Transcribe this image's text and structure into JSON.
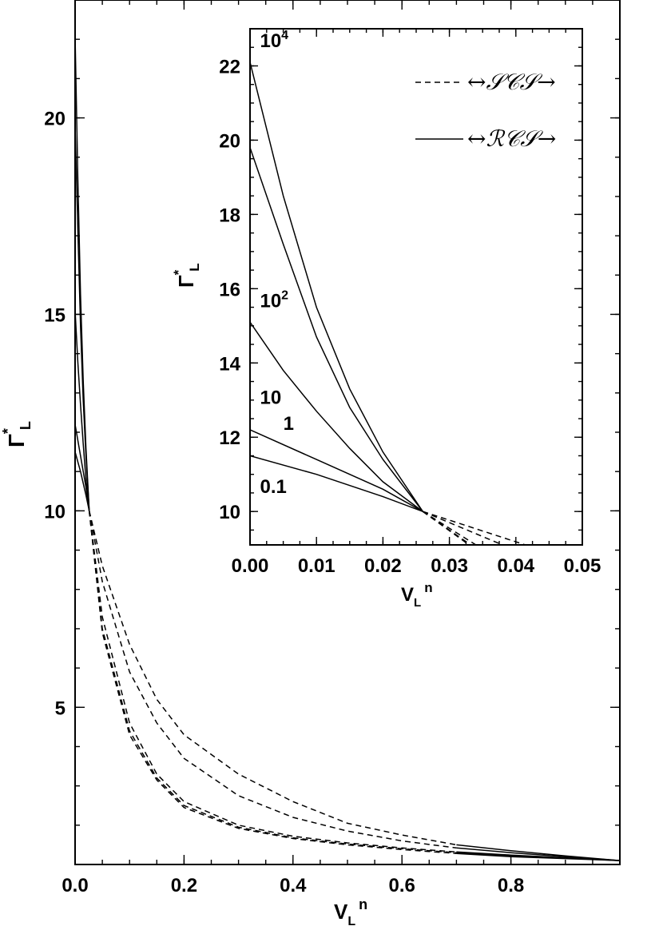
{
  "chart_data": [
    {
      "type": "line",
      "role": "main",
      "xlabel": "V",
      "xlabel_sub": "L",
      "xlabel_sup": "n",
      "ylabel": "Γ",
      "ylabel_sub": "L",
      "ylabel_sup": "*",
      "xlim": [
        0.0,
        1.0
      ],
      "ylim": [
        1.0,
        23.0
      ],
      "xticks": [
        0.0,
        0.2,
        0.4,
        0.6,
        0.8
      ],
      "xtick_labels": [
        "0.0",
        "0.2",
        "0.4",
        "0.6",
        "0.8"
      ],
      "yticks": [
        5,
        10,
        15,
        20
      ],
      "ytick_labels": [
        "5",
        "10",
        "15",
        "20"
      ],
      "series": [
        {
          "style": "solid",
          "x": [
            0.0,
            0.005,
            0.01,
            0.015,
            0.02,
            0.026
          ],
          "y": [
            22.1,
            18.5,
            15.5,
            13.3,
            11.6,
            10.0
          ]
        },
        {
          "style": "solid",
          "x": [
            0.0,
            0.005,
            0.01,
            0.015,
            0.02,
            0.026
          ],
          "y": [
            19.8,
            17.2,
            14.7,
            12.8,
            11.4,
            10.0
          ]
        },
        {
          "style": "solid",
          "x": [
            0.0,
            0.005,
            0.01,
            0.015,
            0.02,
            0.026
          ],
          "y": [
            15.1,
            13.8,
            12.7,
            11.7,
            10.8,
            10.0
          ]
        },
        {
          "style": "solid",
          "x": [
            0.0,
            0.01,
            0.02,
            0.026
          ],
          "y": [
            12.2,
            11.4,
            10.6,
            10.0
          ]
        },
        {
          "style": "solid",
          "x": [
            0.0,
            0.01,
            0.02,
            0.026
          ],
          "y": [
            11.5,
            11.0,
            10.4,
            10.0
          ]
        },
        {
          "style": "dashed",
          "x": [
            0.026,
            0.05,
            0.1,
            0.15,
            0.2,
            0.3,
            0.4,
            0.5,
            0.6,
            0.7
          ],
          "y": [
            10.0,
            8.6,
            6.6,
            5.2,
            4.3,
            3.3,
            2.6,
            2.05,
            1.75,
            1.5
          ]
        },
        {
          "style": "dashed",
          "x": [
            0.026,
            0.05,
            0.1,
            0.15,
            0.2,
            0.3,
            0.4,
            0.5,
            0.6,
            0.7
          ],
          "y": [
            10.0,
            8.2,
            5.9,
            4.6,
            3.7,
            2.75,
            2.2,
            1.85,
            1.6,
            1.42
          ]
        },
        {
          "style": "dashed",
          "x": [
            0.026,
            0.05,
            0.1,
            0.15,
            0.2,
            0.3,
            0.4,
            0.5,
            0.6,
            0.7
          ],
          "y": [
            10.0,
            7.3,
            4.6,
            3.3,
            2.6,
            2.0,
            1.72,
            1.55,
            1.42,
            1.32
          ]
        },
        {
          "style": "dashed",
          "x": [
            0.026,
            0.05,
            0.1,
            0.15,
            0.2,
            0.3,
            0.4,
            0.5,
            0.6,
            0.7
          ],
          "y": [
            10.0,
            7.0,
            4.4,
            3.2,
            2.5,
            1.95,
            1.68,
            1.52,
            1.4,
            1.3
          ]
        },
        {
          "style": "dashed",
          "x": [
            0.026,
            0.05,
            0.1,
            0.15,
            0.2,
            0.3,
            0.4,
            0.5,
            0.6,
            0.7
          ],
          "y": [
            10.0,
            6.9,
            4.3,
            3.15,
            2.45,
            1.92,
            1.66,
            1.5,
            1.38,
            1.28
          ]
        },
        {
          "style": "solid",
          "x": [
            0.7,
            0.8,
            0.9,
            1.0
          ],
          "y": [
            1.5,
            1.35,
            1.22,
            1.1
          ]
        },
        {
          "style": "solid",
          "x": [
            0.7,
            0.8,
            0.9,
            1.0
          ],
          "y": [
            1.42,
            1.3,
            1.2,
            1.1
          ]
        },
        {
          "style": "solid",
          "x": [
            0.7,
            0.8,
            0.9,
            1.0
          ],
          "y": [
            1.32,
            1.24,
            1.17,
            1.1
          ]
        },
        {
          "style": "solid",
          "x": [
            0.7,
            0.8,
            0.9,
            1.0
          ],
          "y": [
            1.3,
            1.22,
            1.16,
            1.1
          ]
        },
        {
          "style": "solid",
          "x": [
            0.7,
            0.8,
            0.9,
            1.0
          ],
          "y": [
            1.28,
            1.2,
            1.15,
            1.1
          ]
        }
      ]
    },
    {
      "type": "line",
      "role": "inset",
      "xlabel": "V",
      "xlabel_sub": "L",
      "xlabel_sup": "n",
      "ylabel": "Γ",
      "ylabel_sub": "L",
      "ylabel_sup": "*",
      "xlim": [
        0.0,
        0.05
      ],
      "ylim": [
        9.1,
        23.0
      ],
      "xticks": [
        0.0,
        0.01,
        0.02,
        0.03,
        0.04,
        0.05
      ],
      "xtick_labels": [
        "0.00",
        "0.01",
        "0.02",
        "0.03",
        "0.04",
        "0.05"
      ],
      "yticks": [
        10,
        12,
        14,
        16,
        18,
        20,
        22
      ],
      "ytick_labels": [
        "10",
        "12",
        "14",
        "16",
        "18",
        "20",
        "22"
      ],
      "legend": {
        "position": "top-right",
        "entries": [
          {
            "style": "dashed",
            "label": "↔𝒮𝒞𝒮→"
          },
          {
            "style": "solid",
            "label": "↔ℛ𝒞𝒮→"
          }
        ]
      },
      "annotations": [
        {
          "text": "10",
          "sup": "4",
          "x": 0.0015,
          "y": 22.5
        },
        {
          "text": "10",
          "sup": "2",
          "x": 0.0015,
          "y": 15.5
        },
        {
          "text": "10",
          "sup": "",
          "x": 0.0015,
          "y": 12.9
        },
        {
          "text": "1",
          "sup": "",
          "x": 0.005,
          "y": 12.2
        },
        {
          "text": "0.1",
          "sup": "",
          "x": 0.0015,
          "y": 10.5
        }
      ],
      "series": [
        {
          "style": "solid",
          "x": [
            0.0,
            0.005,
            0.01,
            0.015,
            0.02,
            0.026
          ],
          "y": [
            22.1,
            18.5,
            15.5,
            13.3,
            11.6,
            10.0
          ]
        },
        {
          "style": "solid",
          "x": [
            0.0,
            0.005,
            0.01,
            0.015,
            0.02,
            0.026
          ],
          "y": [
            19.8,
            17.2,
            14.7,
            12.8,
            11.4,
            10.0
          ]
        },
        {
          "style": "solid",
          "x": [
            0.0,
            0.005,
            0.01,
            0.015,
            0.02,
            0.026
          ],
          "y": [
            15.1,
            13.8,
            12.7,
            11.7,
            10.8,
            10.0
          ]
        },
        {
          "style": "solid",
          "x": [
            0.0,
            0.01,
            0.02,
            0.026
          ],
          "y": [
            12.2,
            11.4,
            10.6,
            10.0
          ]
        },
        {
          "style": "solid",
          "x": [
            0.0,
            0.01,
            0.02,
            0.026
          ],
          "y": [
            11.5,
            11.0,
            10.4,
            10.0
          ]
        },
        {
          "style": "dashed",
          "x": [
            0.026,
            0.05
          ],
          "y": [
            10.0,
            8.6
          ]
        },
        {
          "style": "dashed",
          "x": [
            0.026,
            0.05
          ],
          "y": [
            10.0,
            8.2
          ]
        },
        {
          "style": "dashed",
          "x": [
            0.026,
            0.05
          ],
          "y": [
            10.0,
            7.3
          ]
        },
        {
          "style": "dashed",
          "x": [
            0.026,
            0.05
          ],
          "y": [
            10.0,
            7.0
          ]
        },
        {
          "style": "dashed",
          "x": [
            0.026,
            0.05
          ],
          "y": [
            10.0,
            6.9
          ]
        }
      ]
    }
  ]
}
